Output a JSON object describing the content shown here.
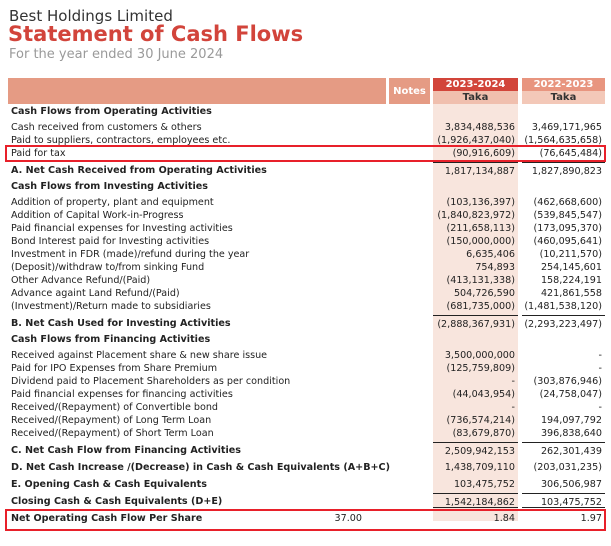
{
  "header": {
    "company": "Best Holdings Limited",
    "title": "Statement of Cash Flows",
    "subtitle": "For the year ended 30 June 2024"
  },
  "columns": {
    "notes": "Notes",
    "year1": "2023-2024",
    "year2": "2022-2023",
    "currency1": "Taka",
    "currency2": "Taka"
  },
  "rows": [
    {
      "type": "first",
      "label": "Cash Flows from Operating Activities",
      "v1": "",
      "v2": ""
    },
    {
      "type": "item",
      "label": "Cash received from customers & others",
      "v1": "3,834,488,536",
      "v2": "3,469,171,965"
    },
    {
      "type": "item",
      "label": "Paid to suppliers, contractors, employees etc.",
      "v1": "(1,926,437,040)",
      "v2": "(1,564,635,658)"
    },
    {
      "type": "item",
      "label": "Paid for tax",
      "v1": "(90,916,609)",
      "v2": "(76,645,484)",
      "highlight": true
    },
    {
      "type": "total",
      "rule": true,
      "label": "A. Net Cash Received from Operating Activities",
      "v1": "1,817,134,887",
      "v2": "1,827,890,823"
    },
    {
      "type": "section",
      "label": "Cash Flows from Investing Activities",
      "v1": "",
      "v2": ""
    },
    {
      "type": "item",
      "label": "Addition of property, plant and equipment",
      "v1": "(103,136,397)",
      "v2": "(462,668,600)"
    },
    {
      "type": "item",
      "label": "Addition of Capital Work-in-Progress",
      "v1": "(1,840,823,972)",
      "v2": "(539,845,547)"
    },
    {
      "type": "item",
      "label": "Paid financial expenses for Investing activities",
      "v1": "(211,658,113)",
      "v2": "(173,095,370)"
    },
    {
      "type": "item",
      "label": "Bond Interest paid for Investing activities",
      "v1": "(150,000,000)",
      "v2": "(460,095,641)"
    },
    {
      "type": "item",
      "label": "Investment in FDR (made)/refund during the year",
      "v1": "6,635,406",
      "v2": "(10,211,570)"
    },
    {
      "type": "item",
      "label": "(Deposit)/withdraw to/from sinking Fund",
      "v1": "754,893",
      "v2": "254,145,601"
    },
    {
      "type": "item",
      "label": "Other Advance Refund/(Paid)",
      "v1": "(413,131,338)",
      "v2": "158,224,191"
    },
    {
      "type": "item",
      "label": "Advance againt Land Refund/(Paid)",
      "v1": "504,726,590",
      "v2": "421,861,558"
    },
    {
      "type": "item",
      "label": "(Investment)/Return made to subsidiaries",
      "v1": "(681,735,000)",
      "v2": "(1,481,538,120)"
    },
    {
      "type": "total",
      "rule": true,
      "label": "B. Net Cash Used for Investing Activities",
      "v1": "(2,888,367,931)",
      "v2": "(2,293,223,497)"
    },
    {
      "type": "section",
      "label": "Cash Flows from Financing Activities",
      "v1": "",
      "v2": ""
    },
    {
      "type": "item",
      "label": "Received against Placement share & new share issue",
      "v1": "3,500,000,000",
      "v2": "-"
    },
    {
      "type": "item",
      "label": "Paid for IPO Expenses from Share Premium",
      "v1": "(125,759,809)",
      "v2": "-"
    },
    {
      "type": "item",
      "label": "Dividend paid to Placement Shareholders as per condition",
      "v1": "-",
      "v2": "(303,876,946)"
    },
    {
      "type": "item",
      "label": "Paid financial expenses for financing activities",
      "v1": "(44,043,954)",
      "v2": "(24,758,047)"
    },
    {
      "type": "item",
      "label": "Received/(Repayment) of Convertible bond",
      "v1": "-",
      "v2": "-"
    },
    {
      "type": "item",
      "label": "Received/(Repayment) of Long Term Loan",
      "v1": "(736,574,214)",
      "v2": "194,097,792"
    },
    {
      "type": "item",
      "label": "Received/(Repayment) of Short Term Loan",
      "v1": "(83,679,870)",
      "v2": "396,838,640"
    },
    {
      "type": "total",
      "rule": true,
      "label": "C. Net Cash Flow from Financing Activities",
      "v1": "2,509,942,153",
      "v2": "262,301,439"
    },
    {
      "type": "total",
      "label": "D. Net Cash Increase /(Decrease) in Cash & Cash Equivalents (A+B+C)",
      "v1": "1,438,709,110",
      "v2": "(203,031,235)"
    },
    {
      "type": "total",
      "label": "E. Opening Cash & Cash Equivalents",
      "v1": "103,475,752",
      "v2": "306,506,987"
    },
    {
      "type": "total",
      "rule": true,
      "double": true,
      "label": "Closing Cash & Cash Equivalents (D+E)",
      "v1": "1,542,184,862",
      "v2": "103,475,752"
    },
    {
      "type": "total",
      "label": "Net Operating Cash Flow Per Share",
      "note": "37.00",
      "v1": "1.84",
      "v2": "1.97",
      "highlight": true
    }
  ],
  "colors": {
    "accent": "#d2443b",
    "highlight": "#e8202a"
  }
}
